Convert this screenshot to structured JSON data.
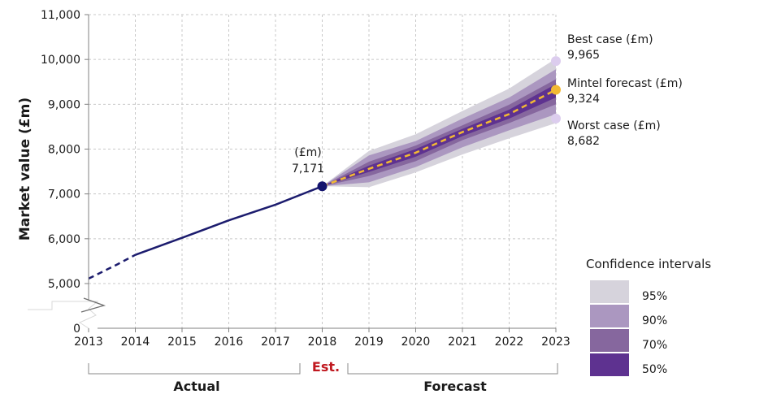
{
  "chart_data": {
    "type": "line",
    "ylabel": "Market value (£m)",
    "ylim": [
      5000,
      11000
    ],
    "y_ticks": [
      "11,000",
      "10,000",
      "9,000",
      "8,000",
      "7,000",
      "6,000",
      "5,000"
    ],
    "y_zero_label": "0",
    "y_axis_break": true,
    "x_ticks": [
      "2013",
      "2014",
      "2015",
      "2016",
      "2017",
      "2018",
      "2019",
      "2020",
      "2021",
      "2022",
      "2023"
    ],
    "grid": "dashed",
    "series": [
      {
        "role": "actual",
        "color": "#1c1c6e",
        "x": [
          2013,
          2013.6,
          2014,
          2015,
          2016,
          2017,
          2018
        ],
        "y": [
          5110,
          5420,
          5640,
          6020,
          6410,
          6760,
          7171
        ],
        "dashed_until": 2014
      },
      {
        "role": "forecast",
        "color": "#f2b933",
        "x": [
          2018,
          2019,
          2020,
          2021,
          2022,
          2023
        ],
        "y": [
          7171,
          7560,
          7920,
          8380,
          8780,
          9324
        ]
      }
    ],
    "confidence_bands": [
      {
        "label": "95%",
        "color": "#d6d3dc",
        "lower": [
          7171,
          7150,
          7480,
          7880,
          8240,
          8580
        ],
        "upper": [
          7171,
          7960,
          8330,
          8850,
          9350,
          10020
        ]
      },
      {
        "label": "90%",
        "color": "#ab97c0",
        "lower": [
          7171,
          7260,
          7600,
          8040,
          8420,
          8780
        ],
        "upper": [
          7171,
          7860,
          8180,
          8680,
          9150,
          9780
        ]
      },
      {
        "label": "70%",
        "color": "#86679e",
        "lower": [
          7171,
          7400,
          7730,
          8200,
          8580,
          9000
        ],
        "upper": [
          7171,
          7720,
          8080,
          8530,
          8990,
          9560
        ]
      },
      {
        "label": "50%",
        "color": "#5e3290",
        "lower": [
          7171,
          7490,
          7830,
          8290,
          8680,
          9150
        ],
        "upper": [
          7171,
          7630,
          8000,
          8450,
          8880,
          9450
        ]
      }
    ],
    "annotations": {
      "est_point": {
        "line1": "(£m)",
        "line2": "7,171",
        "value": 7171,
        "color": "#14146e"
      },
      "best": {
        "line1": "Best case (£m)",
        "line2": "9,965",
        "value": 9965,
        "color": "#dccdee"
      },
      "forecast": {
        "line1": "Mintel forecast (£m)",
        "line2": "9,324",
        "value": 9324,
        "color": "#f2b933"
      },
      "worst": {
        "line1": "Worst case (£m)",
        "line2": "8,682",
        "value": 8682,
        "color": "#dccdee"
      }
    },
    "brackets": {
      "actual": "Actual",
      "est": "Est.",
      "forecast": "Forecast"
    },
    "legend": {
      "title": "Confidence intervals",
      "items": [
        "95%",
        "90%",
        "70%",
        "50%"
      ]
    }
  }
}
